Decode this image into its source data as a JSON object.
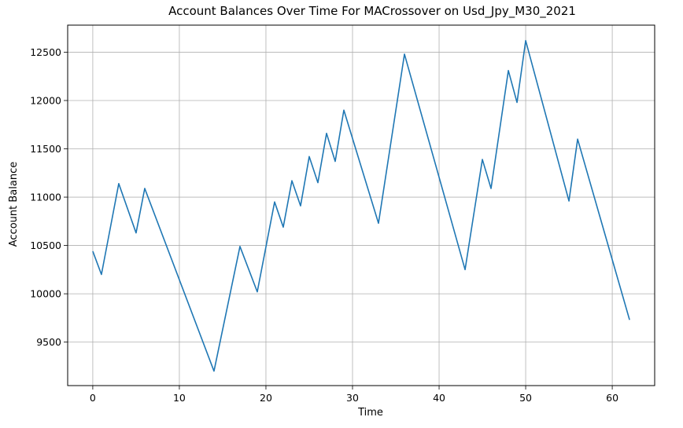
{
  "chart_data": {
    "type": "line",
    "title": "Account Balances Over Time For MACrossover on Usd_Jpy_M30_2021",
    "xlabel": "Time",
    "ylabel": "Account Balance",
    "xlim": [
      -2.9,
      64.9
    ],
    "ylim": [
      9050,
      12780
    ],
    "x_ticks": [
      0,
      10,
      20,
      30,
      40,
      50,
      60
    ],
    "y_ticks": [
      9500,
      10000,
      10500,
      11000,
      11500,
      12000,
      12500
    ],
    "grid": true,
    "line_color": "#1f77b4",
    "series": [
      {
        "x": [
          0,
          1,
          3,
          5,
          6,
          14,
          17,
          19,
          21,
          22,
          23,
          24,
          25,
          26,
          27,
          28,
          29,
          33,
          36,
          43,
          45,
          46,
          48,
          49,
          50,
          55,
          56,
          62
        ],
        "values": [
          10440,
          10200,
          11140,
          10630,
          11090,
          9200,
          10490,
          10020,
          10950,
          10690,
          11170,
          10910,
          11420,
          11150,
          11660,
          11370,
          11900,
          10730,
          12480,
          10250,
          11390,
          11090,
          12310,
          11980,
          12620,
          10960,
          11600,
          9730
        ]
      }
    ]
  }
}
